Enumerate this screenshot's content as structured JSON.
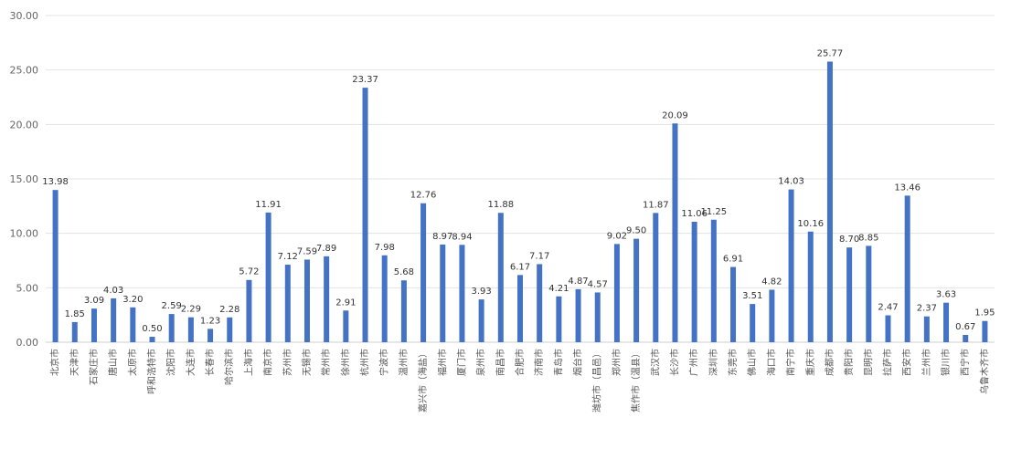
{
  "chart_data": {
    "type": "bar",
    "title": "",
    "xlabel": "",
    "ylabel": "",
    "ylim": [
      0,
      30
    ],
    "yticks": [
      "0.00",
      "5.00",
      "10.00",
      "15.00",
      "20.00",
      "25.00",
      "30.00"
    ],
    "grid": true,
    "legend": "none",
    "bar_color": "#4472c4",
    "categories": [
      "北京市",
      "天津市",
      "石家庄市",
      "唐山市",
      "太原市",
      "呼和浩特市",
      "沈阳市",
      "大连市",
      "长春市",
      "哈尔滨市",
      "上海市",
      "南京市",
      "苏州市",
      "无锡市",
      "常州市",
      "徐州市",
      "杭州市",
      "宁波市",
      "温州市",
      "嘉兴市（海盐）",
      "福州市",
      "厦门市",
      "泉州市",
      "南昌市",
      "合肥市",
      "济南市",
      "青岛市",
      "烟台市",
      "潍坊市（昌邑）",
      "郑州市",
      "焦作市（温县）",
      "武汉市",
      "长沙市",
      "广州市",
      "深圳市",
      "东莞市",
      "佛山市",
      "海口市",
      "南宁市",
      "重庆市",
      "成都市",
      "贵阳市",
      "昆明市",
      "拉萨市",
      "西安市",
      "兰州市",
      "银川市",
      "西宁市",
      "乌鲁木齐市"
    ],
    "values": [
      13.98,
      1.85,
      3.09,
      4.03,
      3.2,
      0.5,
      2.59,
      2.29,
      1.23,
      2.28,
      5.72,
      11.91,
      7.12,
      7.59,
      7.89,
      2.91,
      23.37,
      7.98,
      5.68,
      12.76,
      8.97,
      8.94,
      3.93,
      11.88,
      6.17,
      7.17,
      4.21,
      4.87,
      4.57,
      9.02,
      9.5,
      11.87,
      20.09,
      11.06,
      11.25,
      6.91,
      3.51,
      4.82,
      14.03,
      10.16,
      25.77,
      8.7,
      8.85,
      2.47,
      13.46,
      2.37,
      3.63,
      0.67,
      1.95
    ],
    "value_labels": [
      "13.98",
      "1.85",
      "3.09",
      "4.03",
      "3.20",
      "0.50",
      "2.59",
      "2.29",
      "1.23",
      "2.28",
      "5.72",
      "11.91",
      "7.12",
      "7.59",
      "7.89",
      "2.91",
      "23.37",
      "7.98",
      "5.68",
      "12.76",
      "8.97",
      "8.94",
      "3.93",
      "11.88",
      "6.17",
      "7.17",
      "4.21",
      "4.87",
      "4.57",
      "9.02",
      "9.50",
      "11.87",
      "20.09",
      "11.06",
      "11.25",
      "6.91",
      "3.51",
      "4.82",
      "14.03",
      "10.16",
      "25.77",
      "8.70",
      "8.85",
      "2.47",
      "13.46",
      "2.37",
      "3.63",
      "0.67",
      "1.95"
    ]
  }
}
